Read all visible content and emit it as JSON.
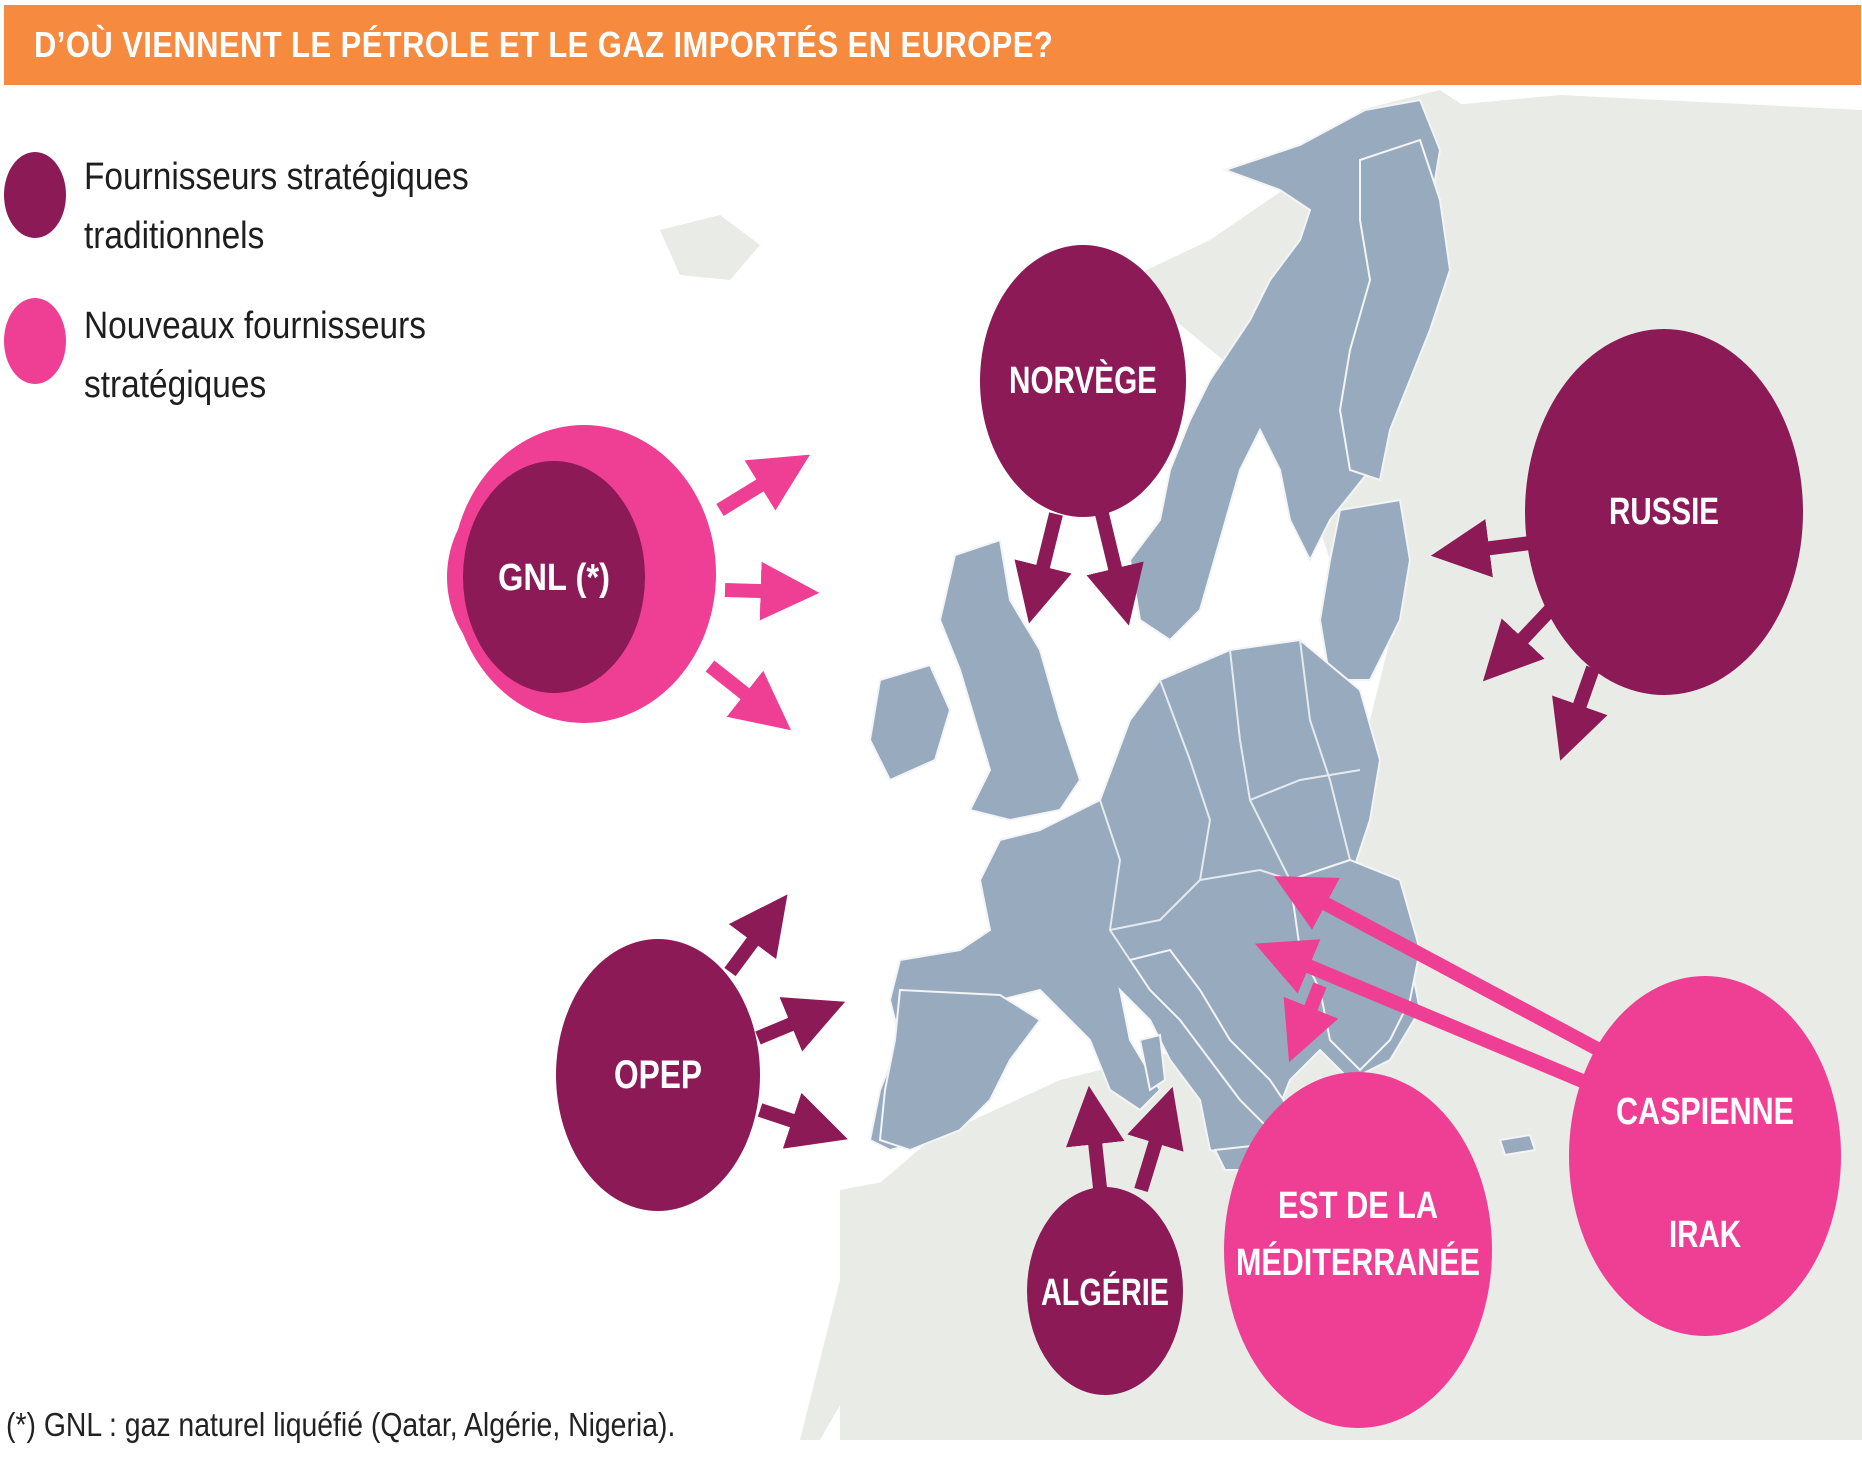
{
  "header": {
    "title": "D’OÙ VIENNENT LE PÉTROLE ET LE GAZ IMPORTÉS EN EUROPE?"
  },
  "legend": {
    "items": [
      {
        "line1": "Fournisseurs stratégiques",
        "line2": "traditionnels",
        "color": "#8b1a57"
      },
      {
        "line1": "Nouveaux fournisseurs",
        "line2": "stratégiques",
        "color": "#ee3f94"
      }
    ]
  },
  "suppliers": {
    "gnl": "GNL (*)",
    "norvege": "NORVÈGE",
    "russie": "RUSSIE",
    "opep": "OPEP",
    "algerie": "ALGÉRIE",
    "est_med_line1": "EST DE LA",
    "est_med_line2": "MÉDITERRANÉE",
    "caspienne": "CASPIENNE",
    "irak": "IRAK"
  },
  "colors": {
    "traditional": "#8b1a57",
    "new": "#ee3f94",
    "eu_land": "#98aabd",
    "other_land": "#e8eae6"
  },
  "footnote": "(*) GNL : gaz naturel liquéfié (Qatar, Algérie, Nigeria)."
}
